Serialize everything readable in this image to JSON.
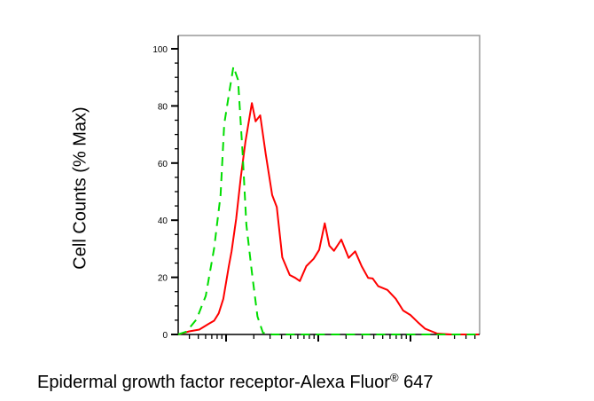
{
  "chart_data": {
    "type": "line",
    "title": "",
    "xlabel_main": "Epidermal growth factor receptor-Alexa Fluor",
    "xlabel_sup": "®",
    "xlabel_tail": " 647",
    "ylabel": "Cell Counts (% Max)",
    "x_scale": "log (decades, unlabeled)",
    "xlim": [
      -0.52,
      2.74
    ],
    "ylim": [
      0,
      100
    ],
    "yticks": [
      "0",
      "20",
      "40",
      "60",
      "80",
      "100"
    ],
    "grid": false,
    "series": [
      {
        "color": "#ff0000",
        "style": "solid",
        "x": [
          -0.52,
          -0.4,
          -0.29,
          -0.19,
          -0.13,
          -0.08,
          -0.03,
          0.03,
          0.06,
          0.11,
          0.16,
          0.21,
          0.28,
          0.32,
          0.37,
          0.43,
          0.5,
          0.55,
          0.61,
          0.69,
          0.75,
          0.8,
          0.87,
          0.95,
          1.01,
          1.07,
          1.12,
          1.17,
          1.25,
          1.33,
          1.4,
          1.47,
          1.54,
          1.59,
          1.65,
          1.75,
          1.84,
          1.92,
          2.0,
          2.08,
          2.16,
          2.29,
          2.45,
          2.74
        ],
        "y": [
          0,
          1.1,
          1.7,
          3.7,
          4.8,
          7.4,
          12.5,
          23.9,
          29.1,
          40.5,
          55,
          67.4,
          81,
          74.6,
          76.7,
          63.2,
          48.8,
          44.6,
          27,
          20.8,
          19.8,
          18.7,
          23.9,
          26.5,
          29.6,
          38.9,
          31.1,
          29.3,
          33.2,
          26.8,
          29.1,
          23.9,
          19.8,
          19.6,
          16.9,
          15.6,
          12.5,
          8.4,
          6.8,
          4.3,
          2,
          0.3,
          0,
          0
        ]
      },
      {
        "color": "#00dd00",
        "style": "dashed",
        "x": [
          -0.52,
          -0.43,
          -0.32,
          -0.22,
          -0.13,
          -0.06,
          -0.02,
          0.04,
          0.08,
          0.13,
          0.18,
          0.22,
          0.28,
          0.34,
          0.4,
          0.5,
          2.74
        ],
        "y": [
          0,
          1,
          5.3,
          13.5,
          30.1,
          48.8,
          73.6,
          86,
          93.8,
          89.1,
          63.2,
          38.4,
          21.8,
          6.3,
          0.6,
          0,
          0
        ]
      }
    ]
  }
}
